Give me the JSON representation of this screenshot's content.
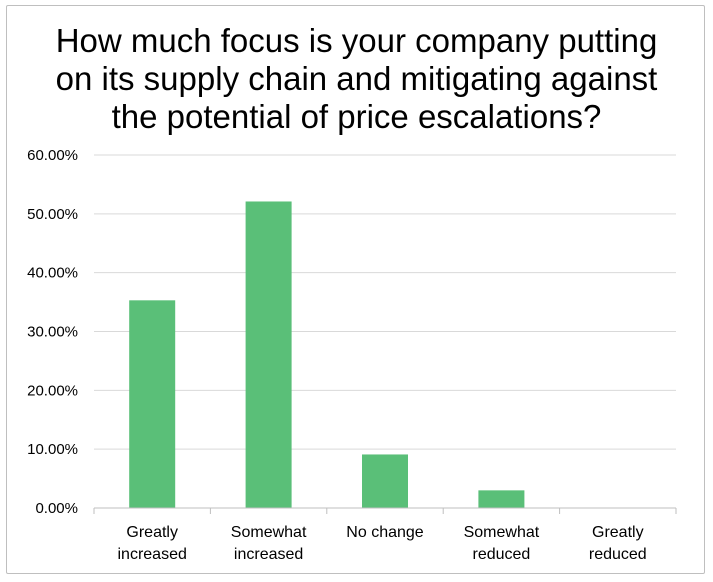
{
  "chart_data": {
    "type": "bar",
    "title_lines": [
      "How much focus is your company putting",
      "on its supply chain and mitigating against",
      "the potential of price escalations?"
    ],
    "categories": [
      [
        "Greatly",
        "increased"
      ],
      [
        "Somewhat",
        "increased"
      ],
      [
        "No change"
      ],
      [
        "Somewhat",
        "reduced"
      ],
      [
        "Greatly",
        "reduced"
      ]
    ],
    "values": [
      35.3,
      52.1,
      9.1,
      3.0,
      0.0
    ],
    "ylim": [
      0,
      60
    ],
    "ytick_values": [
      0,
      10,
      20,
      30,
      40,
      50,
      60
    ],
    "ytick_labels": [
      "0.00%",
      "10.00%",
      "20.00%",
      "30.00%",
      "40.00%",
      "50.00%",
      "60.00%"
    ],
    "grid": true,
    "bar_color": "#5abf78",
    "grid_color": "#d9d9d9",
    "axis_color": "#bfbfbf"
  }
}
